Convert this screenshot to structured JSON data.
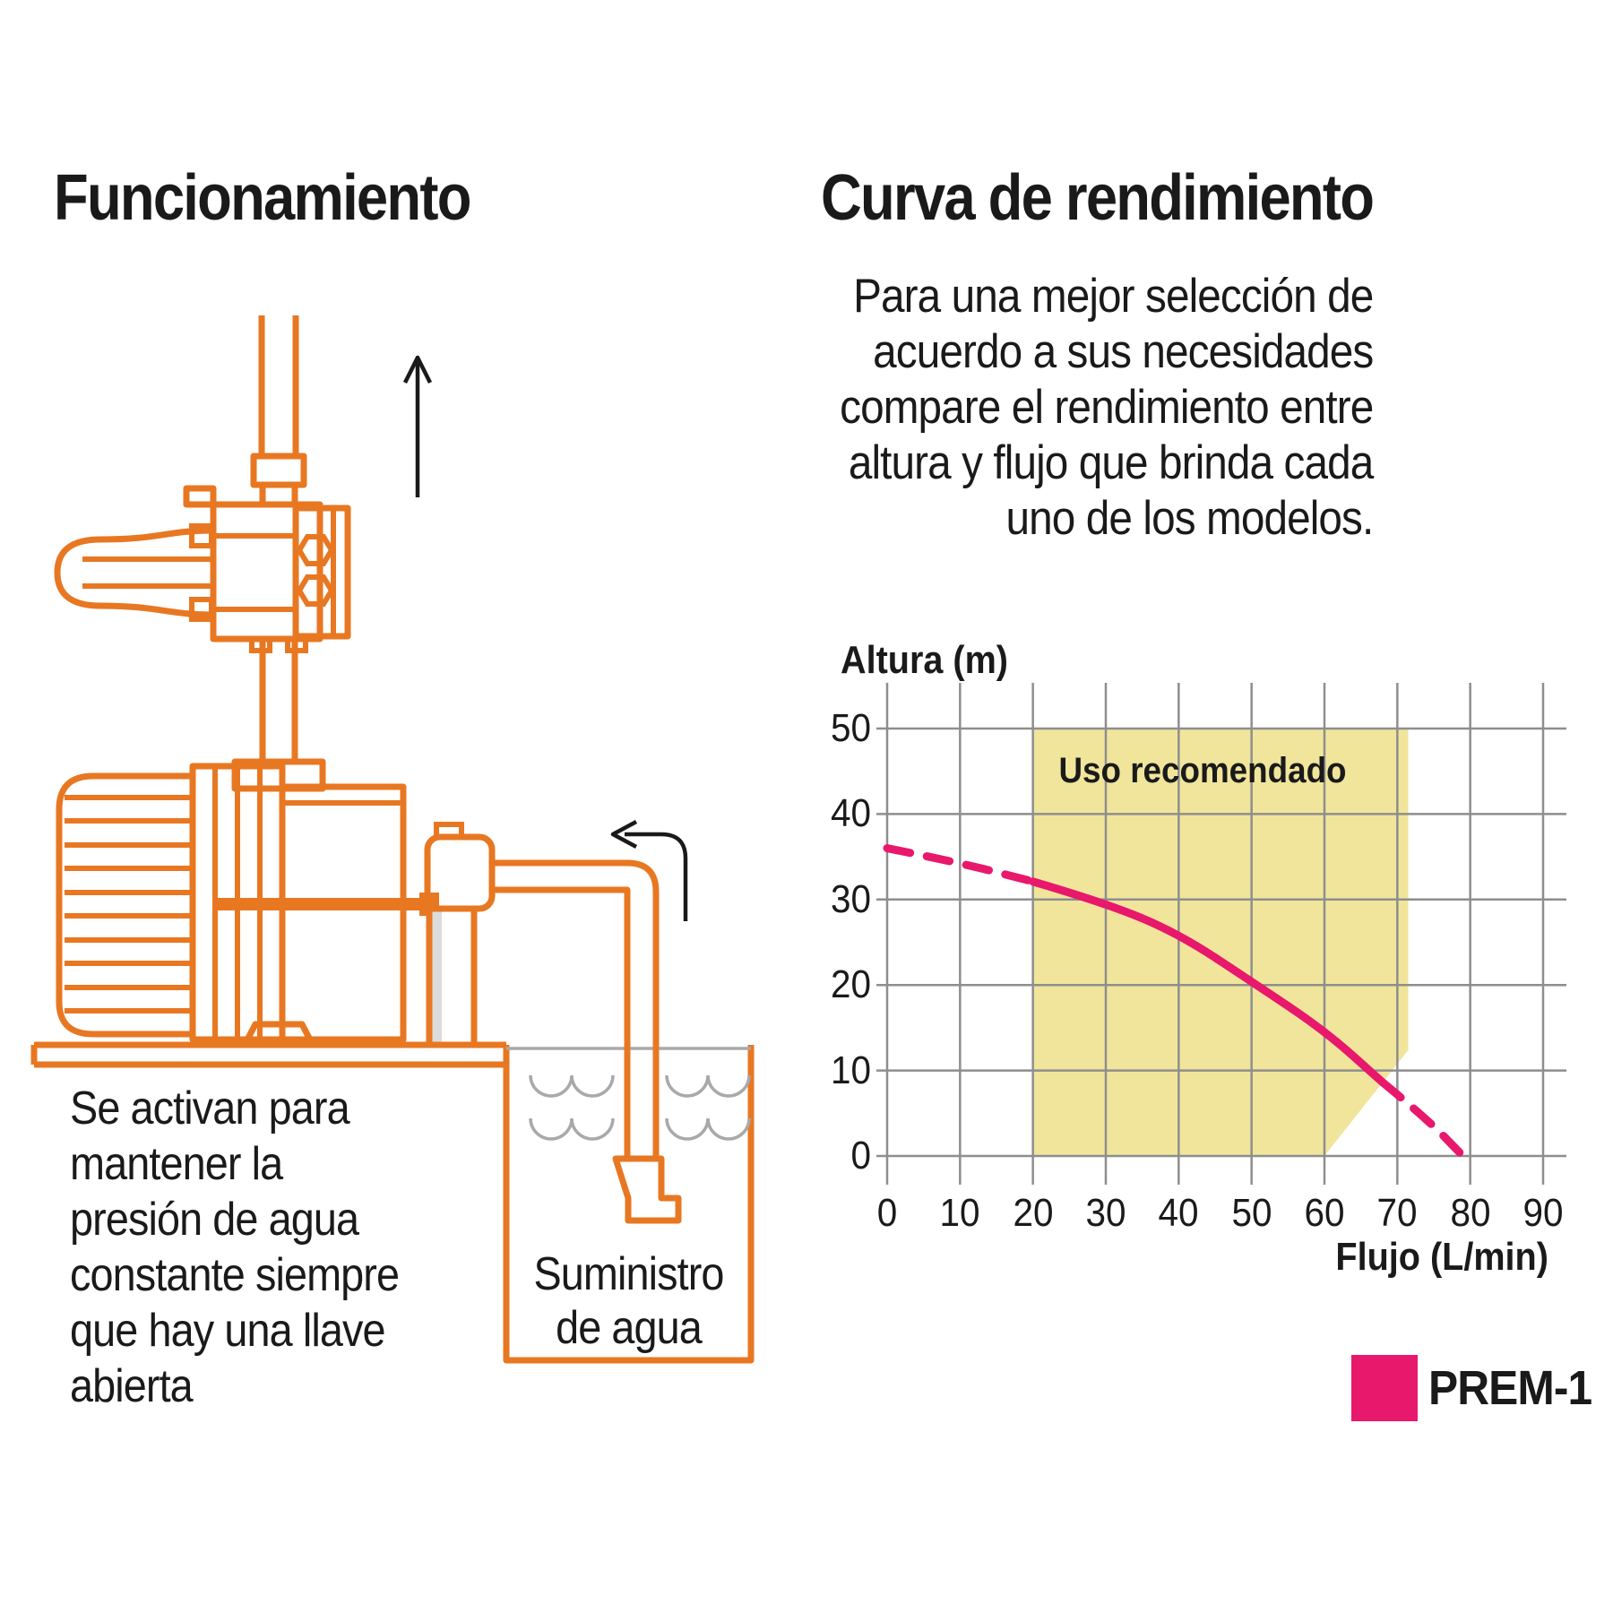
{
  "theme": {
    "orange": "#E87722",
    "pink": "#E8186D",
    "yellow": "#F0E59B",
    "grid_gray": "#8E8E8E",
    "water_gray": "#A9A9A9",
    "ink": "#1A1A1A"
  },
  "left_panel": {
    "title": "Funcionamiento",
    "caption_lines": [
      "Se activan para",
      "mantener la",
      "presión de agua",
      "constante siempre",
      "que hay una llave",
      "abierta"
    ],
    "tank_label_lines": [
      "Suministro",
      "de agua"
    ],
    "diagram_parts": [
      "pressure-switch-unit",
      "discharge-pipe",
      "booster-pump-motor",
      "pump-stages",
      "pump-inlet",
      "platform",
      "suction-pipe",
      "foot-valve",
      "water-tank",
      "water-waves",
      "up-arrow-icon",
      "intake-flow-arrow-icon"
    ]
  },
  "right_panel": {
    "title": "Curva de rendimiento",
    "intro_lines": [
      "Para una mejor selección de",
      "acuerdo a sus necesidades",
      "compare el rendimiento entre",
      "altura y flujo que brinda cada",
      "uno de los modelos."
    ],
    "legend": {
      "label": "PREM-1",
      "color": "#E8186D"
    }
  },
  "chart_data": {
    "type": "line",
    "title": "Curva de rendimiento",
    "xlabel": "Flujo (L/min)",
    "ylabel": "Altura (m)",
    "xlim": [
      0,
      90
    ],
    "ylim": [
      0,
      50
    ],
    "x_ticks": [
      0,
      10,
      20,
      30,
      40,
      50,
      60,
      70,
      80,
      90
    ],
    "y_ticks": [
      50,
      40,
      30,
      20,
      10,
      0
    ],
    "grid": true,
    "legend_position": "bottom-right",
    "recommended_region": {
      "label": "Uso recomendado",
      "color": "#F0E59B",
      "polygon": [
        [
          20,
          50
        ],
        [
          71.5,
          50
        ],
        [
          71.5,
          12.4
        ],
        [
          60,
          0
        ],
        [
          20,
          0
        ]
      ]
    },
    "series": [
      {
        "name": "PREM-1",
        "color": "#E8186D",
        "segments": [
          {
            "style": "dashed",
            "points": [
              [
                0,
                36
              ],
              [
                10,
                34.3
              ],
              [
                20,
                32.1
              ]
            ]
          },
          {
            "style": "solid",
            "points": [
              [
                20,
                32.1
              ],
              [
                30,
                29.6
              ],
              [
                40,
                26
              ],
              [
                50,
                20.4
              ],
              [
                60,
                14.7
              ],
              [
                68,
                8.6
              ]
            ]
          },
          {
            "style": "dashed",
            "points": [
              [
                68,
                8.6
              ],
              [
                74,
                4.4
              ],
              [
                79,
                0
              ]
            ]
          }
        ]
      }
    ]
  }
}
